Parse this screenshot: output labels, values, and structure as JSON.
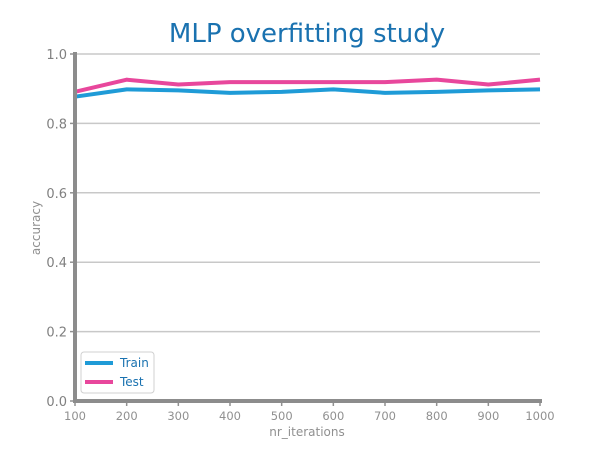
{
  "chart_data": {
    "type": "line",
    "title": "MLP overfitting study",
    "xlabel": "nr_iterations",
    "ylabel": "accuracy",
    "x": [
      100,
      200,
      300,
      400,
      500,
      600,
      700,
      800,
      900,
      1000
    ],
    "xlim": [
      100,
      1000
    ],
    "ylim": [
      0.0,
      1.0
    ],
    "yticks": [
      "0.0",
      "0.2",
      "0.4",
      "0.6",
      "0.8",
      "1.0"
    ],
    "xticks": [
      "100",
      "200",
      "300",
      "400",
      "500",
      "600",
      "700",
      "800",
      "900",
      "1000"
    ],
    "grid": "horizontal",
    "legend_position": "bottom-left",
    "series": [
      {
        "name": "Train",
        "color": "#1f9bd7",
        "values": [
          0.877,
          0.898,
          0.895,
          0.888,
          0.891,
          0.898,
          0.888,
          0.891,
          0.895,
          0.898
        ]
      },
      {
        "name": "Test",
        "color": "#e8479c",
        "values": [
          0.891,
          0.926,
          0.912,
          0.919,
          0.919,
          0.919,
          0.919,
          0.926,
          0.912,
          0.926
        ]
      }
    ],
    "colors": {
      "title": "#1a72b0",
      "axis": "#909090",
      "grid": "#c8c8c8",
      "legend_text": "#1a72b0"
    }
  }
}
